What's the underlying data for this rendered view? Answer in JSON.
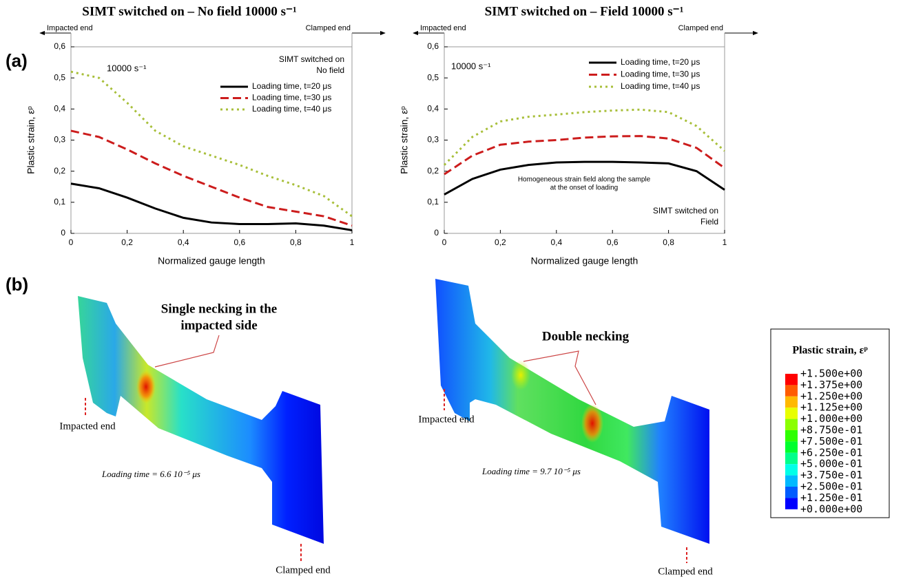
{
  "panel_labels": [
    "(a)",
    "(b)"
  ],
  "chart_data": [
    {
      "type": "line",
      "title": "SIMT switched on – No field  10000 s⁻¹",
      "xlabel": "Normalized gauge length",
      "ylabel": "Plastic strain, εᵖ",
      "ends": [
        "Impacted end",
        "Clamped end"
      ],
      "rate": "10000 s⁻¹",
      "annotations": [
        "SIMT switched on",
        "No field"
      ],
      "x": [
        0,
        0.1,
        0.2,
        0.3,
        0.4,
        0.5,
        0.6,
        0.7,
        0.8,
        0.9,
        1
      ],
      "xlim": [
        0,
        1
      ],
      "xticks": [
        0,
        {
          "value": 0.2,
          "label": "0,2"
        },
        {
          "value": 0.4,
          "label": "0,4"
        },
        {
          "value": 0.6,
          "label": "0,6"
        },
        {
          "value": 0.8,
          "label": "0,8"
        },
        1
      ],
      "ylim": [
        0,
        0.6
      ],
      "yticks": [
        0,
        {
          "value": 0.1,
          "label": "0,1"
        },
        {
          "value": 0.2,
          "label": "0,2"
        },
        {
          "value": 0.3,
          "label": "0,3"
        },
        {
          "value": 0.4,
          "label": "0,4"
        },
        {
          "value": 0.5,
          "label": "0,5"
        },
        {
          "value": 0.6,
          "label": "0,6"
        }
      ],
      "grid": false,
      "series": [
        {
          "name": "Loading time, t=20 μs",
          "color": "#000000",
          "dash": "solid",
          "values": [
            0.16,
            0.145,
            0.115,
            0.08,
            0.05,
            0.035,
            0.03,
            0.03,
            0.032,
            0.025,
            0.01
          ]
        },
        {
          "name": "Loading time, t=30 μs",
          "color": "#cc1c1c",
          "dash": "dashed",
          "values": [
            0.33,
            0.31,
            0.27,
            0.225,
            0.185,
            0.15,
            0.115,
            0.085,
            0.07,
            0.055,
            0.025
          ]
        },
        {
          "name": "Loading time, t=40 μs",
          "color": "#a8bf3a",
          "dash": "dotted",
          "values": [
            0.52,
            0.5,
            0.42,
            0.33,
            0.28,
            0.25,
            0.22,
            0.185,
            0.155,
            0.12,
            0.055
          ]
        }
      ]
    },
    {
      "type": "line",
      "title": "SIMT switched on – Field  10000 s⁻¹",
      "xlabel": "Normalized gauge length",
      "ylabel": "Plastic strain, εᵖ",
      "ends": [
        "Impacted end",
        "Clamped end"
      ],
      "rate": "10000 s⁻¹",
      "annotations": [
        "Homogeneous strain field along the sample",
        "at the onset of loading",
        "SIMT switched on",
        "Field"
      ],
      "x": [
        0,
        0.1,
        0.2,
        0.3,
        0.4,
        0.5,
        0.6,
        0.7,
        0.8,
        0.9,
        1
      ],
      "xlim": [
        0,
        1
      ],
      "xticks": [
        0,
        {
          "value": 0.2,
          "label": "0,2"
        },
        {
          "value": 0.4,
          "label": "0,4"
        },
        {
          "value": 0.6,
          "label": "0,6"
        },
        {
          "value": 0.8,
          "label": "0,8"
        },
        1
      ],
      "ylim": [
        0,
        0.6
      ],
      "yticks": [
        0,
        {
          "value": 0.1,
          "label": "0,1"
        },
        {
          "value": 0.2,
          "label": "0,2"
        },
        {
          "value": 0.3,
          "label": "0,3"
        },
        {
          "value": 0.4,
          "label": "0,4"
        },
        {
          "value": 0.5,
          "label": "0,5"
        },
        {
          "value": 0.6,
          "label": "0,6"
        }
      ],
      "grid": false,
      "series": [
        {
          "name": "Loading time, t=20 μs",
          "color": "#000000",
          "dash": "solid",
          "values": [
            0.125,
            0.175,
            0.205,
            0.22,
            0.228,
            0.23,
            0.23,
            0.228,
            0.225,
            0.2,
            0.14
          ]
        },
        {
          "name": "Loading time, t=30 μs",
          "color": "#cc1c1c",
          "dash": "dashed",
          "values": [
            0.19,
            0.25,
            0.285,
            0.295,
            0.3,
            0.308,
            0.312,
            0.313,
            0.305,
            0.275,
            0.21
          ]
        },
        {
          "name": "Loading time, t=40 μs",
          "color": "#a8bf3a",
          "dash": "dotted",
          "values": [
            0.22,
            0.31,
            0.36,
            0.375,
            0.382,
            0.39,
            0.395,
            0.398,
            0.39,
            0.345,
            0.265
          ]
        }
      ]
    }
  ],
  "simulations": [
    {
      "callout": [
        "Single necking in the",
        "impacted side"
      ],
      "impacted_end": "Impacted end",
      "clamped_end": "Clamped end",
      "loading_time": "Loading time = 6.6 10⁻⁵ μs"
    },
    {
      "callout": [
        "Double necking"
      ],
      "impacted_end": "Impacted end",
      "clamped_end": "Clamped end",
      "loading_time": "Loading time = 9.7 10⁻⁵ μs"
    }
  ],
  "contour_legend": {
    "title": "Plastic strain, εᵖ",
    "labels": [
      "+1.500e+00",
      "+1.375e+00",
      "+1.250e+00",
      "+1.125e+00",
      "+1.000e+00",
      "+8.750e-01",
      "+7.500e-01",
      "+6.250e-01",
      "+5.000e-01",
      "+3.750e-01",
      "+2.500e-01",
      "+1.250e-01",
      "+0.000e+00"
    ],
    "colors": [
      "#ff0000",
      "#ff5c00",
      "#ffb900",
      "#e8ff00",
      "#8bff00",
      "#2eff00",
      "#00ff2e",
      "#00ff8b",
      "#00ffe8",
      "#00b9ff",
      "#005cff",
      "#0000ff"
    ]
  }
}
